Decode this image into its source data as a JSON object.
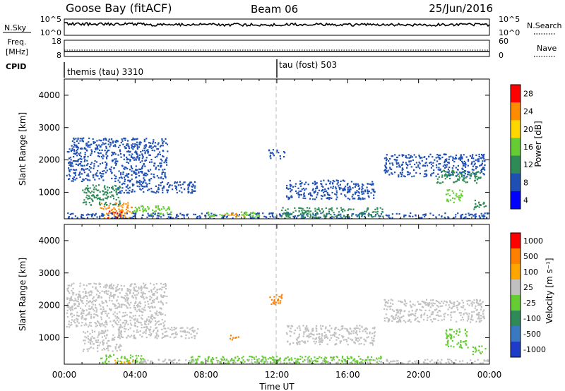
{
  "header": {
    "station": "Goose Bay (fitACF)",
    "beam": "Beam 06",
    "date": "25/Jun/2016"
  },
  "strips": {
    "nsky_label": "N.Sky",
    "nsky_ticks": [
      "10^5",
      "10^0"
    ],
    "nsearch_label": "N.Search",
    "nsearch_ticks": [
      "10^5",
      "10^0"
    ],
    "freq_label_1": "Freq.",
    "freq_label_2": "[MHz]",
    "freq_ticks": [
      "18",
      "8"
    ],
    "nave_label": "Nave",
    "nave_ticks": [
      "60",
      "0"
    ],
    "cpid_label": "CPID",
    "cpid_segments": [
      {
        "label": "themis (tau) 3310",
        "start_hour": 0
      },
      {
        "label": "tau (fost) 503",
        "start_hour": 12
      }
    ]
  },
  "axes": {
    "ylabel": "Slant Range [km]",
    "xlabel": "Time UT",
    "y_ticks": [
      "1000",
      "2000",
      "3000",
      "4000"
    ],
    "x_ticks": [
      "00:00",
      "04:00",
      "08:00",
      "12:00",
      "16:00",
      "20:00",
      "00:00"
    ]
  },
  "colorbars": {
    "power": {
      "label": "Power [dB]",
      "ticks": [
        "4",
        "8",
        "12",
        "16",
        "20",
        "24",
        "28"
      ],
      "colors": [
        "#0000ff",
        "#1e50b4",
        "#2e8b57",
        "#66cc33",
        "#ffd700",
        "#ff8c00",
        "#ff0000"
      ]
    },
    "velocity": {
      "label": "Velocity [m s⁻¹]",
      "ticks": [
        "1000",
        "500",
        "100",
        "25",
        "-25",
        "-100",
        "-500",
        "-1000"
      ],
      "colors": [
        "#1f3cc8",
        "#3a78c2",
        "#2e8b57",
        "#66cc33",
        "#c0c0c0",
        "#ffa500",
        "#ff7f00",
        "#ff0000"
      ]
    }
  },
  "chart_data": [
    {
      "type": "heatmap",
      "name": "power",
      "x_range_hours": [
        0,
        24
      ],
      "y_range_km": [
        180,
        4500
      ],
      "legend": "right colorbar",
      "regions": [
        {
          "t0": 0.1,
          "t1": 5.8,
          "r0": 1350,
          "r1": 2700,
          "color": "#1e50b4"
        },
        {
          "t0": 1.0,
          "t1": 3.2,
          "r0": 600,
          "r1": 1250,
          "color": "#2e8b57"
        },
        {
          "t0": 2.0,
          "t1": 3.8,
          "r0": 200,
          "r1": 700,
          "color": "#ff8c00"
        },
        {
          "t0": 2.4,
          "t1": 3.2,
          "r0": 200,
          "r1": 450,
          "color": "#ff0000"
        },
        {
          "t0": 3.0,
          "t1": 7.5,
          "r0": 1000,
          "r1": 1350,
          "color": "#1e50b4"
        },
        {
          "t0": 3.8,
          "t1": 6.0,
          "r0": 300,
          "r1": 600,
          "color": "#66cc33"
        },
        {
          "t0": 0.0,
          "t1": 24.0,
          "r0": 200,
          "r1": 380,
          "color": "#1e50b4"
        },
        {
          "t0": 8.0,
          "t1": 11.0,
          "r0": 250,
          "r1": 420,
          "color": "#66cc33"
        },
        {
          "t0": 9.0,
          "t1": 10.2,
          "r0": 250,
          "r1": 380,
          "color": "#ff8c00"
        },
        {
          "t0": 11.5,
          "t1": 12.5,
          "r0": 2050,
          "r1": 2350,
          "color": "#1e50b4"
        },
        {
          "t0": 12.2,
          "t1": 18.0,
          "r0": 200,
          "r1": 550,
          "color": "#2e8b57"
        },
        {
          "t0": 12.5,
          "t1": 17.5,
          "r0": 800,
          "r1": 1400,
          "color": "#1e50b4"
        },
        {
          "t0": 18.0,
          "t1": 23.7,
          "r0": 1500,
          "r1": 2200,
          "color": "#1e50b4"
        },
        {
          "t0": 21.0,
          "t1": 23.5,
          "r0": 1300,
          "r1": 1700,
          "color": "#2e8b57"
        },
        {
          "t0": 21.5,
          "t1": 22.5,
          "r0": 700,
          "r1": 1100,
          "color": "#66cc33"
        },
        {
          "t0": 23.0,
          "t1": 23.8,
          "r0": 500,
          "r1": 800,
          "color": "#2e8b57"
        }
      ]
    },
    {
      "type": "heatmap",
      "name": "velocity",
      "x_range_hours": [
        0,
        24
      ],
      "y_range_km": [
        180,
        4500
      ],
      "legend": "right colorbar",
      "regions": [
        {
          "t0": 0.1,
          "t1": 5.8,
          "r0": 1350,
          "r1": 2700,
          "color": "#c0c0c0"
        },
        {
          "t0": 1.0,
          "t1": 3.2,
          "r0": 600,
          "r1": 1250,
          "color": "#c0c0c0"
        },
        {
          "t0": 2.0,
          "t1": 4.5,
          "r0": 200,
          "r1": 500,
          "color": "#66cc33"
        },
        {
          "t0": 2.8,
          "t1": 4.0,
          "r0": 200,
          "r1": 350,
          "color": "#ffa500"
        },
        {
          "t0": 3.0,
          "t1": 7.5,
          "r0": 1000,
          "r1": 1350,
          "color": "#c0c0c0"
        },
        {
          "t0": 4.0,
          "t1": 24.0,
          "r0": 200,
          "r1": 350,
          "color": "#c0c0c0"
        },
        {
          "t0": 7.0,
          "t1": 18.0,
          "r0": 200,
          "r1": 450,
          "color": "#66cc33"
        },
        {
          "t0": 9.3,
          "t1": 9.8,
          "r0": 900,
          "r1": 1100,
          "color": "#ff7f00"
        },
        {
          "t0": 11.5,
          "t1": 12.3,
          "r0": 2050,
          "r1": 2400,
          "color": "#ff7f00"
        },
        {
          "t0": 12.5,
          "t1": 17.5,
          "r0": 800,
          "r1": 1400,
          "color": "#c0c0c0"
        },
        {
          "t0": 18.0,
          "t1": 23.7,
          "r0": 1500,
          "r1": 2200,
          "color": "#c0c0c0"
        },
        {
          "t0": 21.5,
          "t1": 22.8,
          "r0": 700,
          "r1": 1300,
          "color": "#66cc33"
        },
        {
          "t0": 23.0,
          "t1": 23.8,
          "r0": 500,
          "r1": 800,
          "color": "#66cc33"
        }
      ]
    }
  ]
}
